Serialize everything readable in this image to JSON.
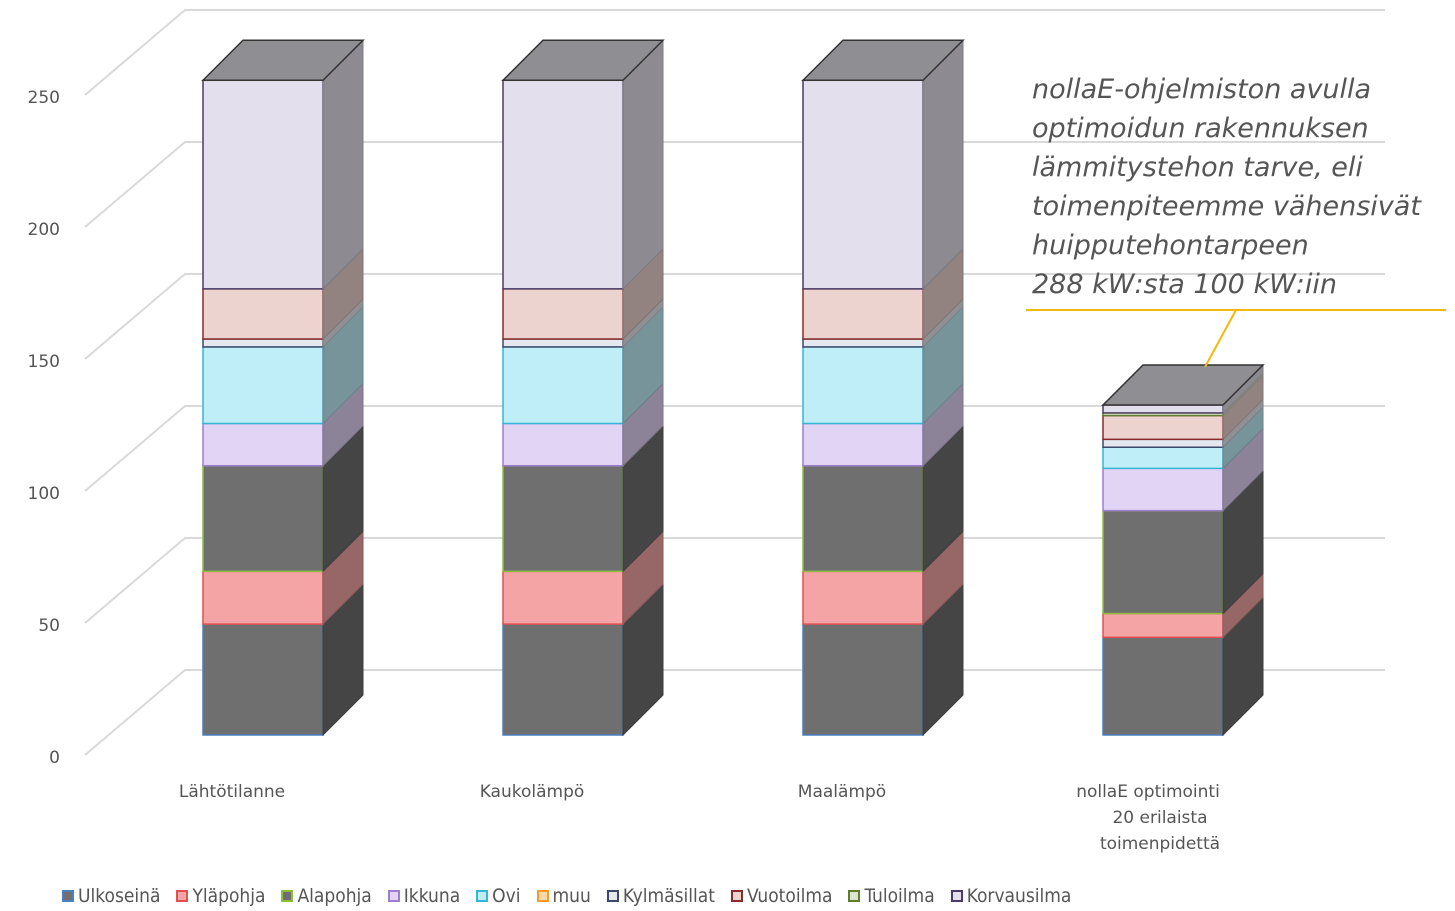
{
  "annotation": {
    "lines": [
      "nollaE-ohjelmiston avulla",
      "optimoidun rakennuksen",
      "lämmitystehon tarve, eli",
      "toimenpiteemme vähensivät",
      "huipputehontarpeen",
      "288 kW:sta 100 kW:iin"
    ]
  },
  "chart_data": {
    "type": "bar",
    "stacked": true,
    "three_d": true,
    "y_ticks": [
      "0",
      "50",
      "100",
      "150",
      "200",
      "250"
    ],
    "ylim": [
      0,
      250
    ],
    "grid": true,
    "legend_position": "bottom",
    "categories": [
      [
        "Lähtötilanne"
      ],
      [
        "Kaukolämpö"
      ],
      [
        "Maalämpö"
      ],
      [
        "nollaE optimointi",
        "20 erilaista",
        "toimenpidettä"
      ]
    ],
    "series": [
      {
        "name": "Ulkoseinä",
        "color": "#6f6f6f",
        "edge": "#4a7fc0",
        "values": [
          42,
          42,
          42,
          37
        ]
      },
      {
        "name": "Yläpohja",
        "color": "#f4a4a4",
        "edge": "#e05050",
        "values": [
          20,
          20,
          20,
          9
        ]
      },
      {
        "name": "Alapohja",
        "color": "#6f6f6f",
        "edge": "#8cbd3f",
        "values": [
          40,
          40,
          40,
          39
        ]
      },
      {
        "name": "Ikkuna",
        "color": "#e2d4f5",
        "edge": "#9d7fd0",
        "values": [
          16,
          16,
          16,
          16
        ]
      },
      {
        "name": "Ovi",
        "color": "#bfeef9",
        "edge": "#35b6d6",
        "values": [
          29,
          29,
          29,
          8
        ]
      },
      {
        "name": "muu",
        "color": "#ffd9a8",
        "edge": "#f39a2c",
        "values": [
          0,
          0,
          0,
          0
        ]
      },
      {
        "name": "Kylmäsillat",
        "color": "#e6e8ef",
        "edge": "#3b4a6b",
        "values": [
          3,
          3,
          3,
          3
        ]
      },
      {
        "name": "Vuotoilma",
        "color": "#ecd3d0",
        "edge": "#8b2a2a",
        "values": [
          19,
          19,
          19,
          9
        ]
      },
      {
        "name": "Tuloilma",
        "color": "#dde6cc",
        "edge": "#5f7f30",
        "values": [
          0,
          0,
          0,
          1
        ]
      },
      {
        "name": "Korvausilma",
        "color": "#e4dfec",
        "edge": "#4a3c66",
        "values": [
          79,
          79,
          79,
          3
        ]
      }
    ]
  }
}
